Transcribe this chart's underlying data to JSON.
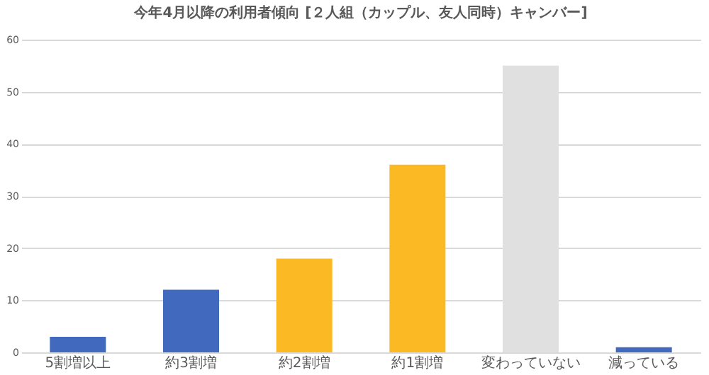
{
  "chart_data": {
    "type": "bar",
    "title": "今年4月以降の利用者傾向 [２人組（カップル、友人同時）キャンバー]",
    "categories": [
      "5割増以上",
      "約3割増",
      "約2割増",
      "約1割増",
      "変わっていない",
      "減っている"
    ],
    "values": [
      3,
      12,
      18,
      36,
      55,
      1
    ],
    "colors": [
      "#4169be",
      "#4169be",
      "#fbb923",
      "#fbb923",
      "#e0e0e0",
      "#4169be"
    ],
    "ylim": [
      0,
      60
    ],
    "yticks": [
      0,
      10,
      20,
      30,
      40,
      50,
      60
    ],
    "grid": "y",
    "legend": false
  }
}
